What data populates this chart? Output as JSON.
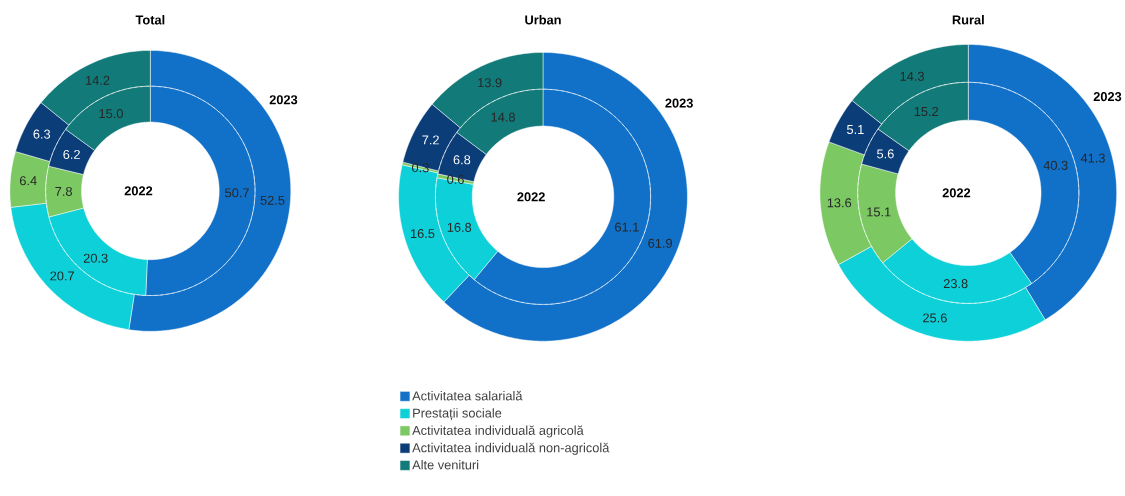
{
  "chart_data": [
    {
      "type": "donut",
      "title": "Total",
      "categories": [
        null,
        null,
        null,
        null,
        null
      ],
      "colors": [
        "#1170c8",
        "#0dd0d8",
        "#7cc862",
        "#0b3d78",
        "#127a78"
      ],
      "series": [
        {
          "name": "2023",
          "values": [
            52.5,
            20.7,
            6.4,
            6.3,
            14.2
          ],
          "value_labels": [
            "52.5",
            "20.7",
            "6.4",
            "6.3",
            "14.2"
          ]
        },
        {
          "name": "2022",
          "values": [
            50.7,
            20.3,
            7.8,
            6.2,
            15.0
          ],
          "value_labels": [
            "50.7",
            "20.3",
            "7.8",
            "6.2",
            "15.0"
          ]
        }
      ],
      "legend": false
    },
    {
      "type": "donut",
      "title": "Urban",
      "categories": [
        "Activitatea salarială",
        "Prestații sociale",
        "Activitatea individuală agricolă",
        "Activitatea individuală non-agricolă",
        "Alte venituri"
      ],
      "colors": [
        "#1170c8",
        "#0dd0d8",
        "#7cc862",
        "#0b3d78",
        "#127a78"
      ],
      "series": [
        {
          "name": "2023",
          "values": [
            61.9,
            16.5,
            0.3,
            7.2,
            13.9
          ],
          "value_labels": [
            "61.9",
            "16.5",
            "0.3",
            "7.2",
            "13.9"
          ]
        },
        {
          "name": "2022",
          "values": [
            61.1,
            16.8,
            0.6,
            6.8,
            14.8
          ],
          "value_labels": [
            "61.1",
            "16.8",
            "0.6",
            "6.8",
            "14.8"
          ]
        }
      ],
      "legend": "bottom"
    },
    {
      "type": "donut",
      "title": "Rural",
      "categories": [
        null,
        null,
        null,
        null,
        null
      ],
      "colors": [
        "#1170c8",
        "#0dd0d8",
        "#7cc862",
        "#0b3d78",
        "#127a78"
      ],
      "series": [
        {
          "name": "2023",
          "values": [
            41.3,
            25.6,
            13.6,
            5.1,
            14.3
          ],
          "value_labels": [
            "41.3",
            "25.6",
            "13.6",
            "5.1",
            "14.3"
          ]
        },
        {
          "name": "2022",
          "values": [
            40.3,
            23.8,
            15.1,
            5.6,
            15.2
          ],
          "value_labels": [
            "40.3",
            "23.8",
            "15.1",
            "5.6",
            "15.2"
          ]
        }
      ],
      "legend": false
    }
  ]
}
